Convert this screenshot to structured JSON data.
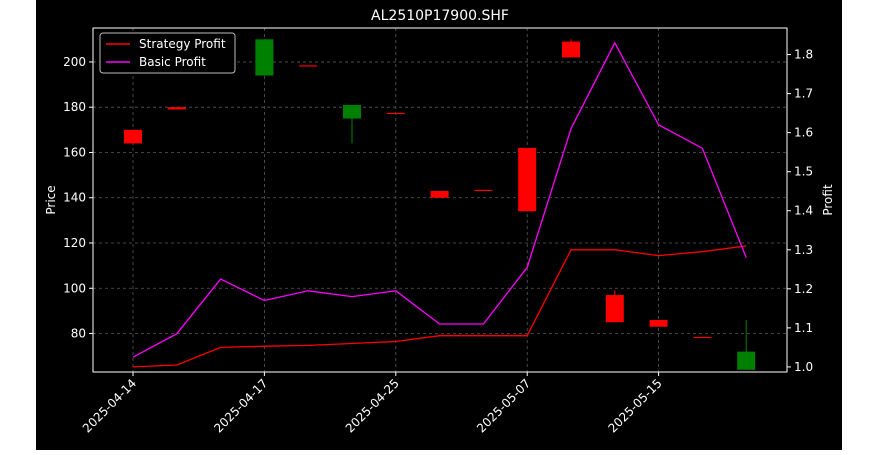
{
  "chart_data": {
    "type": "candlestick+line",
    "title": "AL2510P17900.SHF",
    "xlabel": "",
    "ylabel_left": "Price",
    "ylabel_right": "Profit",
    "ylim_left": [
      63,
      215
    ],
    "ylim_right": [
      0.987,
      1.868
    ],
    "yticks_left": [
      80,
      100,
      120,
      140,
      160,
      180,
      200
    ],
    "yticks_right": [
      1.0,
      1.1,
      1.2,
      1.3,
      1.4,
      1.5,
      1.6,
      1.7,
      1.8
    ],
    "xtick_labels": [
      "2025-04-14",
      "2025-04-17",
      "2025-04-25",
      "2025-05-07",
      "2025-05-15"
    ],
    "xtick_index": [
      0,
      3,
      6,
      9,
      12
    ],
    "grid": true,
    "legend_position": "top-left",
    "colors": {
      "background": "#000000",
      "foreground": "#ffffff",
      "grid": "#5a5a5a",
      "up": "#008000",
      "down": "#ff0000",
      "strategy_line": "#ff0000",
      "basic_line": "#ff00ff"
    },
    "candles": [
      {
        "open": 170,
        "high": 170,
        "low": 164,
        "close": 164
      },
      {
        "open": 180,
        "high": 180,
        "low": 179,
        "close": 179
      },
      null,
      {
        "open": 194,
        "high": 210,
        "low": 194,
        "close": 210
      },
      {
        "open": 198.5,
        "high": 198.5,
        "low": 198,
        "close": 198
      },
      {
        "open": 175,
        "high": 181,
        "low": 164,
        "close": 181
      },
      {
        "open": 177.5,
        "high": 177.5,
        "low": 177,
        "close": 177
      },
      {
        "open": 143,
        "high": 143,
        "low": 140,
        "close": 140
      },
      {
        "open": 143.5,
        "high": 143.5,
        "low": 143,
        "close": 143
      },
      {
        "open": 162,
        "high": 162,
        "low": 134,
        "close": 134
      },
      {
        "open": 209,
        "high": 210,
        "low": 202,
        "close": 202
      },
      {
        "open": 97,
        "high": 99,
        "low": 85,
        "close": 85
      },
      {
        "open": 86,
        "high": 86,
        "low": 83,
        "close": 83
      },
      {
        "open": 78.5,
        "high": 78.5,
        "low": 78,
        "close": 78
      },
      {
        "open": 64,
        "high": 86,
        "low": 64,
        "close": 72
      }
    ],
    "series": [
      {
        "name": "Strategy Profit",
        "values": [
          1.0,
          1.005,
          1.05,
          1.053,
          1.055,
          1.06,
          1.065,
          1.08,
          1.08,
          1.08,
          1.3,
          1.3,
          1.285,
          1.295,
          1.31
        ]
      },
      {
        "name": "Basic Profit",
        "values": [
          1.025,
          1.085,
          1.225,
          1.17,
          1.195,
          1.18,
          1.195,
          1.11,
          1.11,
          1.255,
          1.61,
          1.83,
          1.62,
          1.56,
          1.28
        ]
      }
    ]
  }
}
